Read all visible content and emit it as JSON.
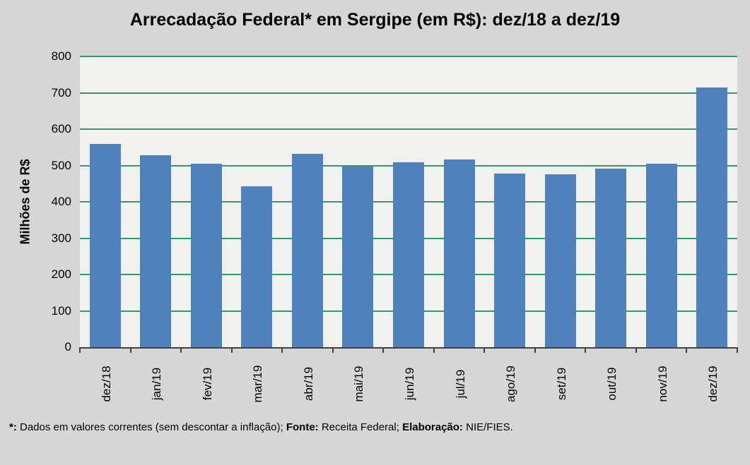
{
  "title": "Arrecadação Federal* em Sergipe (em R$): dez/18 a dez/19",
  "chart_data": {
    "type": "bar",
    "title": "Arrecadação Federal* em Sergipe (em R$): dez/18 a dez/19",
    "xlabel": "",
    "ylabel": "Milhões de R$",
    "categories": [
      "dez/18",
      "jan/19",
      "fev/19",
      "mar/19",
      "abr/19",
      "mai/19",
      "jun/19",
      "jul/19",
      "ago/19",
      "set/19",
      "out/19",
      "nov/19",
      "dez/19"
    ],
    "values": [
      559,
      528,
      505,
      443,
      532,
      497,
      509,
      517,
      477,
      475,
      491,
      505,
      714
    ],
    "ylim": [
      0,
      800
    ],
    "yticks": [
      0,
      100,
      200,
      300,
      400,
      500,
      600,
      700,
      800
    ],
    "grid": true,
    "legend_position": "none",
    "colors": {
      "bar": "#4f81bd",
      "grid": "#339966",
      "plot_bg": "#f1f1f0",
      "page_bg": "#d6d6d6",
      "axis": "#404040",
      "text": "#000000"
    }
  },
  "footer": {
    "parts": [
      {
        "text": "*:",
        "bold": true
      },
      {
        "text": " Dados em valores correntes (sem descontar a inflação); ",
        "bold": false
      },
      {
        "text": "Fonte:",
        "bold": true
      },
      {
        "text": " Receita Federal; ",
        "bold": false
      },
      {
        "text": "Elaboração:",
        "bold": true
      },
      {
        "text": " NIE/FIES.",
        "bold": false
      }
    ]
  }
}
